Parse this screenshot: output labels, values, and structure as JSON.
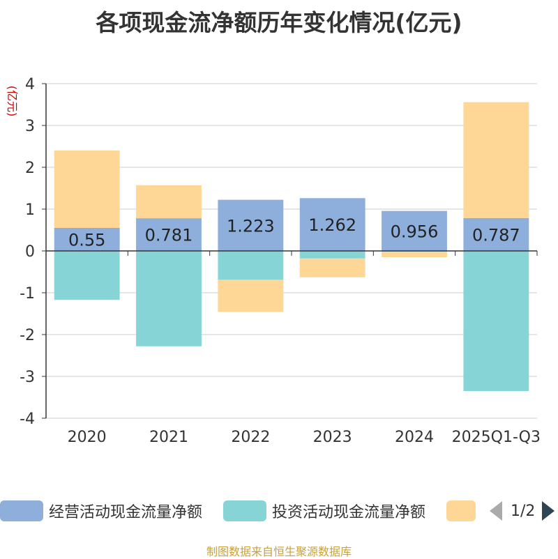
{
  "chart_data": {
    "type": "bar",
    "stacked": true,
    "title": "各项现金流净额历年变化情况(亿元)",
    "ylabel": "(亿元)",
    "xlabel": "",
    "ylim": [
      -4,
      4
    ],
    "yticks": [
      -4,
      -3,
      -2,
      -1,
      0,
      1,
      2,
      3,
      4
    ],
    "categories": [
      "2020",
      "2021",
      "2022",
      "2023",
      "2024",
      "2025Q1-Q3"
    ],
    "series": [
      {
        "name": "经营活动现金流量净额",
        "color": "#8eaedb",
        "values": [
          0.55,
          0.781,
          1.223,
          1.262,
          0.956,
          0.787
        ],
        "show_labels": true,
        "labels": [
          "0.55",
          "0.781",
          "1.223",
          "1.262",
          "0.956",
          "0.787"
        ]
      },
      {
        "name": "投资活动现金流量净额",
        "color": "#86d4d6",
        "values": [
          -1.17,
          -2.28,
          -0.69,
          -0.18,
          -0.02,
          -3.35
        ],
        "show_labels": false
      },
      {
        "name": "",
        "color": "#fed797",
        "values": [
          1.85,
          0.79,
          -0.77,
          -0.45,
          -0.13,
          2.77
        ],
        "show_labels": false
      }
    ],
    "grid": true,
    "legend_position": "bottom"
  },
  "legend": {
    "pager_text": "1/2"
  },
  "footer": {
    "source": "制图数据来自恒生聚源数据库"
  }
}
